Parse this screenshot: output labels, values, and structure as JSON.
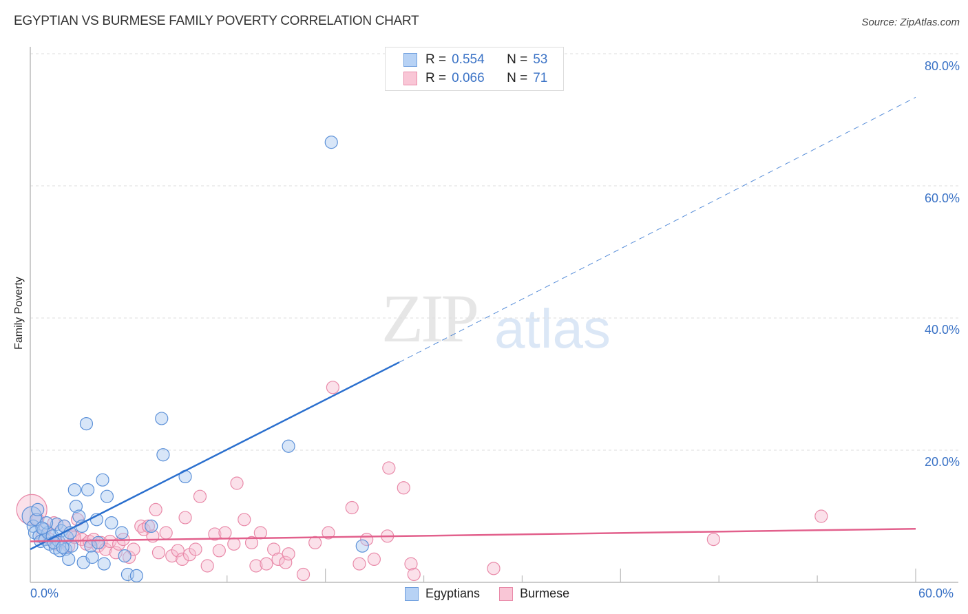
{
  "header": {
    "title": "EGYPTIAN VS BURMESE FAMILY POVERTY CORRELATION CHART",
    "source": "Source: ZipAtlas.com"
  },
  "legend": {
    "rows": [
      {
        "swatch_color": "#b7d2f5",
        "border_color": "#6f9fde",
        "r_label": "R =",
        "r_value": "0.554",
        "n_label": "N =",
        "n_value": "53"
      },
      {
        "swatch_color": "#f9c6d6",
        "border_color": "#e98aa9",
        "r_label": "R =",
        "r_value": "0.066",
        "n_label": "N =",
        "n_value": "71"
      }
    ]
  },
  "axes": {
    "ylabel": "Family Poverty",
    "y_ticks": [
      "80.0%",
      "60.0%",
      "40.0%",
      "20.0%"
    ],
    "x_min_label": "0.0%",
    "x_max_label": "60.0%"
  },
  "bottom_legend": [
    {
      "label": "Egyptians",
      "color": "#b7d2f5",
      "border": "#6f9fde"
    },
    {
      "label": "Burmese",
      "color": "#f9c6d6",
      "border": "#e98aa9"
    }
  ],
  "watermark": {
    "zip": "ZIP",
    "atlas": "atlas"
  },
  "colors": {
    "egyptians_fill": "#a9c8f0",
    "egyptians_stroke": "#5b90d8",
    "egyptians_line": "#2a6fce",
    "burmese_fill": "#f7bcd0",
    "burmese_stroke": "#e98aa9",
    "burmese_line": "#e2608c",
    "tick_label": "#3b73c6",
    "grid": "#dddddd"
  },
  "chart_data": {
    "type": "scatter",
    "title": "EGYPTIAN VS BURMESE FAMILY POVERTY CORRELATION CHART",
    "xlabel": "",
    "ylabel": "Family Poverty",
    "xlim": [
      0,
      60
    ],
    "ylim": [
      0,
      85
    ],
    "x_tick_labels": [
      "0.0%",
      "60.0%"
    ],
    "y_tick_labels": [
      "20.0%",
      "40.0%",
      "60.0%",
      "80.0%"
    ],
    "grid": {
      "horizontal": true,
      "style": "dashed"
    },
    "legend_position": "top-center and bottom-center",
    "series": [
      {
        "name": "Egyptians",
        "R": 0.554,
        "N": 53,
        "trend": {
          "x0": 0,
          "y0": 5.0,
          "x1": 25,
          "y1": 33.3,
          "dashed_extension_to": {
            "x": 60,
            "y": 73.4
          }
        },
        "points": [
          [
            0.1,
            10.0
          ],
          [
            0.2,
            8.5
          ],
          [
            0.3,
            7.5
          ],
          [
            0.4,
            9.5
          ],
          [
            0.6,
            7.0
          ],
          [
            0.7,
            6.2
          ],
          [
            0.9,
            8.0
          ],
          [
            1.0,
            6.5
          ],
          [
            1.2,
            7.5
          ],
          [
            1.3,
            5.8
          ],
          [
            1.5,
            7.0
          ],
          [
            1.7,
            5.2
          ],
          [
            1.8,
            8.8
          ],
          [
            1.9,
            6.3
          ],
          [
            2.0,
            4.8
          ],
          [
            2.1,
            7.8
          ],
          [
            2.3,
            8.5
          ],
          [
            2.4,
            5.0
          ],
          [
            2.5,
            6.8
          ],
          [
            2.6,
            3.5
          ],
          [
            2.7,
            7.5
          ],
          [
            2.8,
            5.5
          ],
          [
            3.0,
            14.0
          ],
          [
            3.1,
            11.5
          ],
          [
            3.3,
            10.0
          ],
          [
            3.5,
            8.5
          ],
          [
            3.6,
            3.0
          ],
          [
            3.8,
            24.0
          ],
          [
            3.9,
            14.0
          ],
          [
            4.1,
            5.5
          ],
          [
            4.2,
            3.8
          ],
          [
            4.5,
            9.5
          ],
          [
            4.6,
            6.0
          ],
          [
            4.9,
            15.5
          ],
          [
            5.0,
            2.8
          ],
          [
            5.2,
            13.0
          ],
          [
            5.5,
            9.0
          ],
          [
            6.2,
            7.5
          ],
          [
            6.4,
            4.0
          ],
          [
            6.6,
            1.2
          ],
          [
            7.2,
            1.0
          ],
          [
            8.2,
            8.5
          ],
          [
            8.9,
            24.8
          ],
          [
            9.0,
            19.3
          ],
          [
            10.5,
            16.0
          ],
          [
            17.5,
            20.6
          ],
          [
            20.4,
            66.6
          ],
          [
            22.5,
            5.5
          ],
          [
            0.5,
            11.0
          ],
          [
            1.1,
            9.0
          ],
          [
            1.6,
            6.0
          ],
          [
            2.2,
            5.3
          ],
          [
            0.8,
            8.2
          ]
        ]
      },
      {
        "name": "Burmese",
        "R": 0.066,
        "N": 71,
        "trend": {
          "x0": 0,
          "y0": 6.2,
          "x1": 60,
          "y1": 8.1
        },
        "points": [
          [
            0.1,
            11.0
          ],
          [
            0.5,
            9.5
          ],
          [
            0.8,
            7.0
          ],
          [
            1.0,
            8.0
          ],
          [
            1.3,
            6.5
          ],
          [
            1.6,
            9.0
          ],
          [
            2.0,
            6.0
          ],
          [
            2.3,
            8.5
          ],
          [
            2.6,
            5.5
          ],
          [
            2.9,
            7.0
          ],
          [
            3.2,
            9.5
          ],
          [
            3.5,
            6.5
          ],
          [
            3.8,
            5.8
          ],
          [
            4.0,
            6.2
          ],
          [
            4.3,
            6.5
          ],
          [
            4.6,
            5.5
          ],
          [
            4.8,
            6.0
          ],
          [
            5.1,
            5.0
          ],
          [
            5.4,
            6.2
          ],
          [
            5.8,
            4.5
          ],
          [
            6.0,
            5.8
          ],
          [
            6.3,
            6.5
          ],
          [
            6.7,
            3.8
          ],
          [
            7.0,
            5.0
          ],
          [
            7.5,
            8.5
          ],
          [
            7.7,
            8.0
          ],
          [
            8.0,
            8.5
          ],
          [
            8.3,
            7.0
          ],
          [
            8.5,
            11.0
          ],
          [
            8.7,
            4.5
          ],
          [
            9.2,
            7.5
          ],
          [
            9.6,
            4.0
          ],
          [
            10.0,
            4.8
          ],
          [
            10.3,
            3.5
          ],
          [
            10.5,
            9.8
          ],
          [
            10.8,
            4.2
          ],
          [
            11.2,
            5.0
          ],
          [
            11.5,
            13.0
          ],
          [
            12.0,
            2.5
          ],
          [
            12.5,
            7.3
          ],
          [
            12.8,
            4.8
          ],
          [
            13.2,
            7.5
          ],
          [
            13.8,
            5.8
          ],
          [
            14.0,
            15.0
          ],
          [
            14.5,
            9.5
          ],
          [
            15.0,
            6.0
          ],
          [
            15.3,
            2.5
          ],
          [
            15.6,
            7.5
          ],
          [
            16.0,
            2.8
          ],
          [
            16.5,
            5.0
          ],
          [
            16.8,
            3.5
          ],
          [
            17.3,
            3.0
          ],
          [
            17.5,
            4.3
          ],
          [
            18.5,
            1.2
          ],
          [
            19.3,
            6.0
          ],
          [
            20.2,
            7.5
          ],
          [
            21.8,
            11.3
          ],
          [
            22.3,
            2.8
          ],
          [
            22.8,
            6.5
          ],
          [
            23.3,
            3.5
          ],
          [
            24.2,
            7.0
          ],
          [
            24.3,
            17.3
          ],
          [
            25.3,
            14.3
          ],
          [
            25.8,
            2.8
          ],
          [
            26.0,
            1.2
          ],
          [
            20.5,
            29.5
          ],
          [
            31.4,
            2.1
          ],
          [
            46.3,
            6.5
          ],
          [
            53.6,
            10.0
          ],
          [
            1.8,
            5.8
          ],
          [
            3.0,
            6.8
          ]
        ]
      }
    ]
  }
}
